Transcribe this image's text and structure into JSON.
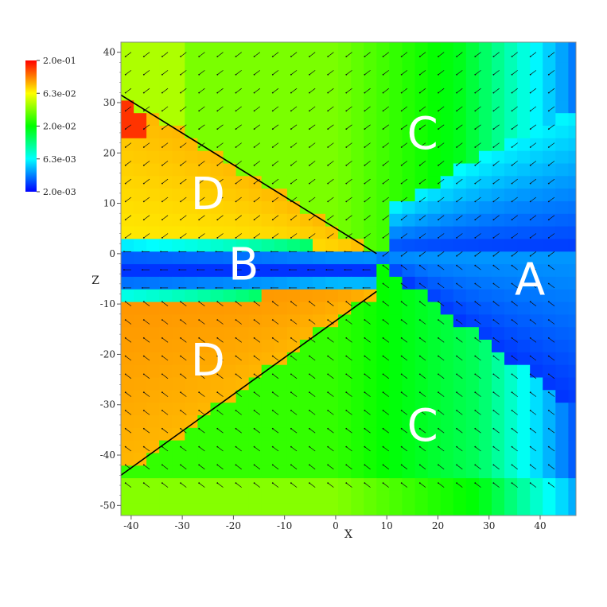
{
  "chart_data": {
    "type": "heatmap",
    "title": "",
    "xlabel": "X",
    "ylabel": "Z",
    "xlim": [
      -42,
      47
    ],
    "ylim": [
      -52,
      42
    ],
    "x_ticks": [
      -40,
      -30,
      -20,
      -10,
      0,
      10,
      20,
      30,
      40
    ],
    "y_ticks": [
      40,
      30,
      20,
      10,
      0,
      -10,
      -20,
      -30,
      -40,
      -50
    ],
    "colorbar": {
      "scale": "log",
      "ticks": [
        "2.0e-01",
        "6.3e-02",
        "2.0e-02",
        "6.3e-03",
        "2.0e-03"
      ],
      "min": 0.002,
      "max": 0.2,
      "colors": [
        "#0000ff",
        "#00ffff",
        "#00ff00",
        "#ffff00",
        "#ff0000"
      ]
    },
    "region_labels": [
      {
        "text": "A",
        "x": 38,
        "z": -5
      },
      {
        "text": "B",
        "x": -18,
        "z": -2
      },
      {
        "text": "C",
        "x": 17,
        "z": 24
      },
      {
        "text": "C",
        "x": 17,
        "z": -34
      },
      {
        "text": "D",
        "x": -25,
        "z": 12
      },
      {
        "text": "D",
        "x": -25,
        "z": -21
      }
    ],
    "boundary_lines": [
      {
        "from": [
          -42,
          31.5
        ],
        "to": [
          8,
          0
        ]
      },
      {
        "from": [
          -42,
          -44
        ],
        "to": [
          8,
          -7.5
        ]
      }
    ]
  }
}
